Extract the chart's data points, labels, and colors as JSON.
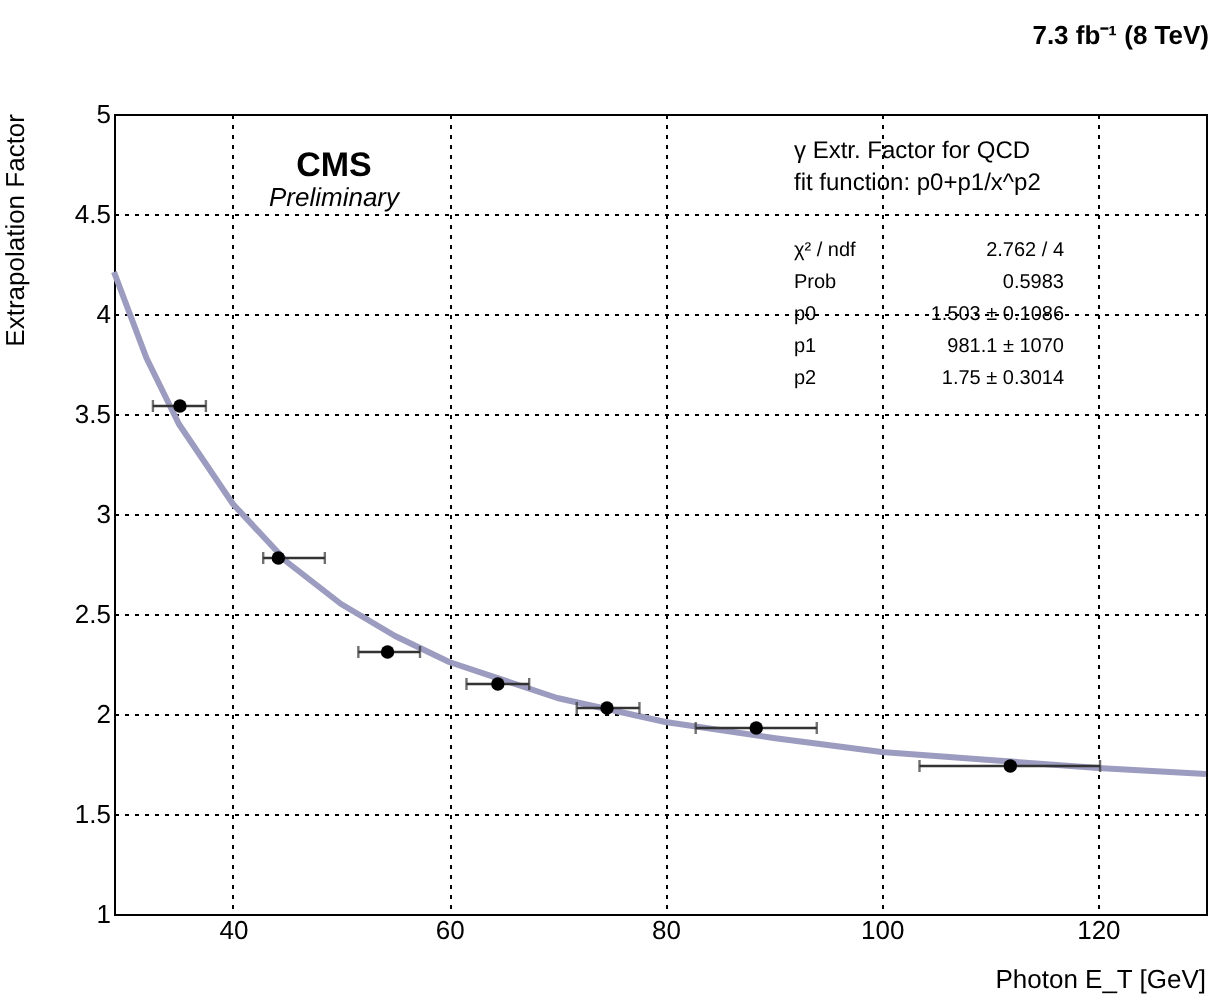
{
  "chart_data": {
    "type": "scatter",
    "title": "7.3 fb⁻¹ (8 TeV)",
    "xlabel": "Photon E_T [GeV]",
    "ylabel": "Extrapolation Factor",
    "xlim": [
      29,
      130
    ],
    "xticks": [
      40,
      60,
      80,
      100,
      120
    ],
    "ylim": [
      1,
      5
    ],
    "yticks": [
      1,
      1.5,
      2,
      2.5,
      3,
      3.5,
      4,
      4.5,
      5
    ],
    "grid": true,
    "series": [
      {
        "type": "scatter",
        "marker": "circle",
        "color": "#000000",
        "x": [
          35.1,
          44.2,
          54.3,
          64.5,
          74.6,
          88.4,
          111.9
        ],
        "values": [
          3.54,
          2.78,
          2.31,
          2.15,
          2.03,
          1.93,
          1.74
        ],
        "xerrors": [
          [
            32.6,
            37.5
          ],
          [
            42.8,
            48.5
          ],
          [
            51.6,
            57.3
          ],
          [
            61.6,
            67.4
          ],
          [
            71.8,
            77.6
          ],
          [
            82.8,
            94.0
          ],
          [
            103.5,
            120.2
          ]
        ]
      },
      {
        "type": "line",
        "marker": "none",
        "line_style": "solid",
        "color": "#9c9cc0",
        "x": [
          29,
          32,
          35,
          40,
          45,
          50,
          55,
          60,
          70,
          80,
          90,
          100,
          110,
          120,
          130
        ],
        "values": [
          4.21,
          3.78,
          3.45,
          3.05,
          2.76,
          2.55,
          2.39,
          2.26,
          2.08,
          1.96,
          1.88,
          1.81,
          1.77,
          1.73,
          1.7
        ]
      }
    ],
    "annotations": [
      "CMS",
      "Preliminary",
      "γ Extr. Factor for QCD",
      "fit function: p0+p1/x^p2",
      "χ² / ndf",
      "2.762 / 4",
      "Prob",
      "0.5983",
      "p0",
      "1.503 ± 0.1086",
      "p1",
      "981.1 ±  1070",
      "p2",
      "1.75 ± 0.3014"
    ]
  }
}
